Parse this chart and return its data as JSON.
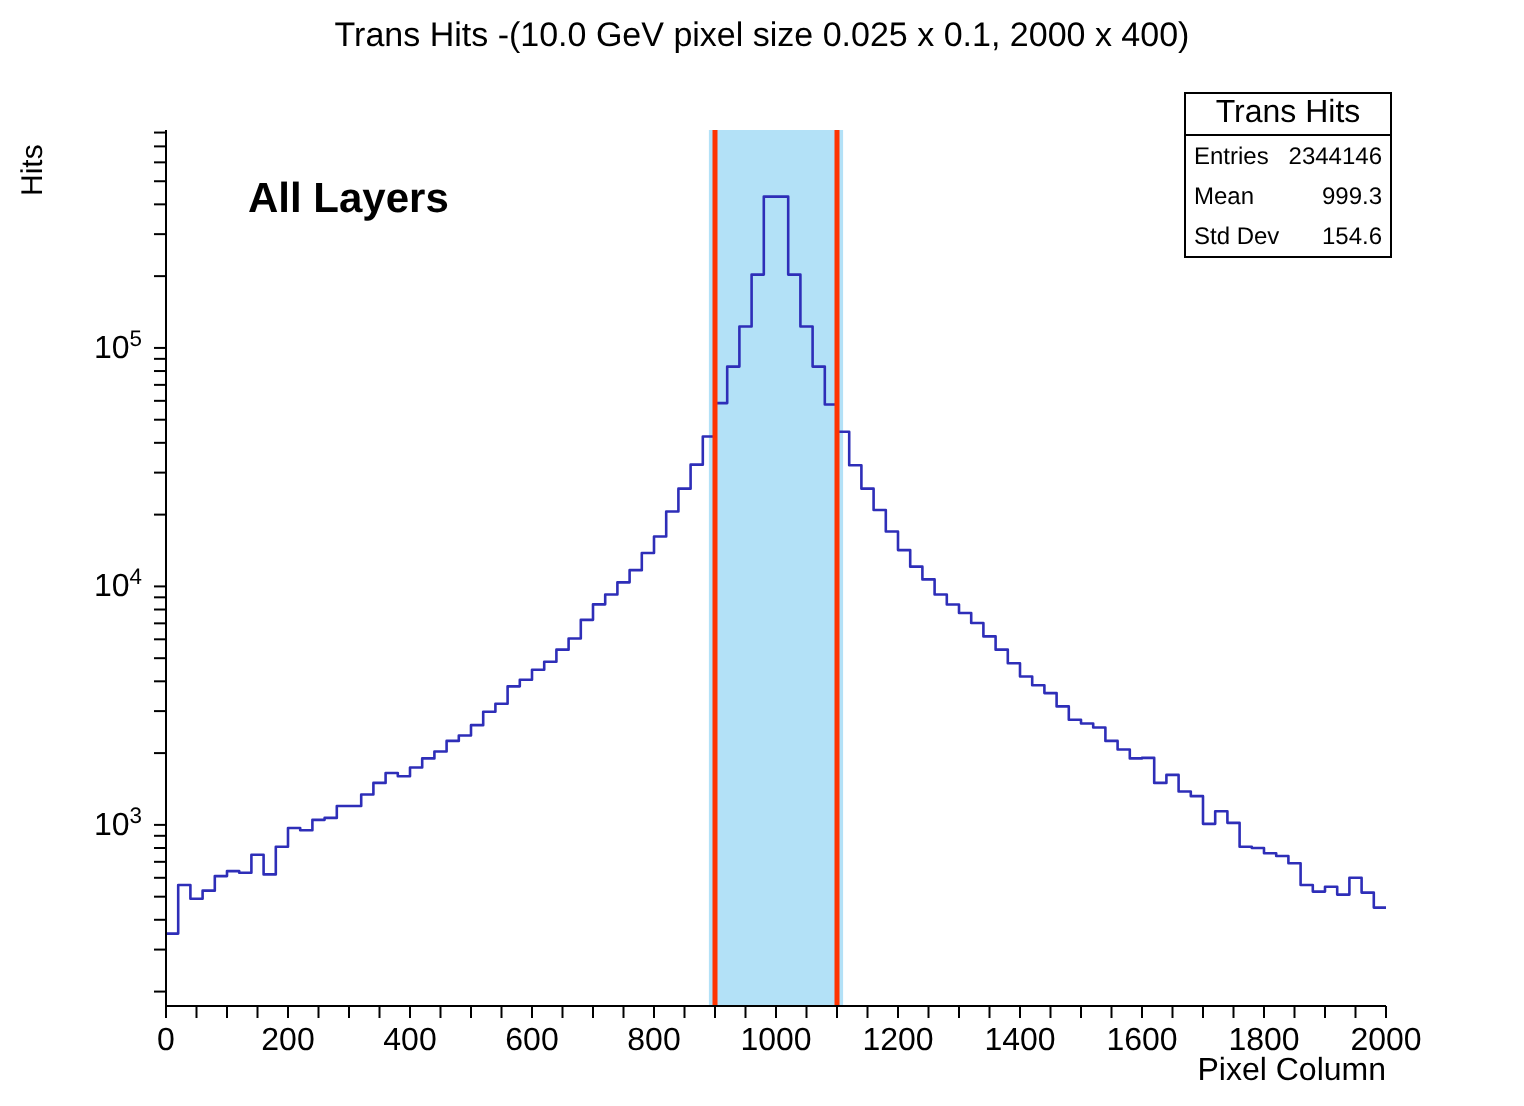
{
  "chart_data": {
    "type": "histogram",
    "title": "Trans Hits -(10.0 GeV pixel size 0.025 x 0.1, 2000 x 400)",
    "xlabel": "Pixel Column",
    "ylabel": "Hits",
    "bins": [
      0,
      20,
      40,
      60,
      80,
      100,
      120,
      140,
      160,
      180,
      200,
      220,
      240,
      260,
      280,
      300,
      320,
      340,
      360,
      380,
      400,
      420,
      440,
      460,
      480,
      500,
      520,
      540,
      560,
      580,
      600,
      620,
      640,
      660,
      680,
      700,
      720,
      740,
      760,
      780,
      800,
      820,
      840,
      860,
      880,
      900,
      920,
      940,
      960,
      980,
      1000,
      1020,
      1040,
      1060,
      1080,
      1100,
      1120,
      1140,
      1160,
      1180,
      1200,
      1220,
      1240,
      1260,
      1280,
      1300,
      1320,
      1340,
      1360,
      1380,
      1400,
      1420,
      1440,
      1460,
      1480,
      1500,
      1520,
      1540,
      1560,
      1580,
      1600,
      1620,
      1640,
      1660,
      1680,
      1700,
      1720,
      1740,
      1760,
      1780,
      1800,
      1820,
      1840,
      1860,
      1880,
      1900,
      1920,
      1940,
      1960,
      1980,
      2000
    ],
    "values": [
      350,
      560,
      490,
      530,
      610,
      640,
      630,
      750,
      620,
      810,
      970,
      950,
      1050,
      1070,
      1200,
      1200,
      1340,
      1500,
      1650,
      1600,
      1740,
      1900,
      2030,
      2250,
      2370,
      2620,
      2980,
      3220,
      3810,
      4060,
      4470,
      4830,
      5430,
      6050,
      7240,
      8410,
      9250,
      10400,
      11700,
      13800,
      16200,
      20600,
      25700,
      32400,
      42500,
      58700,
      83500,
      123000,
      203000,
      431000,
      431000,
      203000,
      123000,
      83500,
      57900,
      44500,
      32200,
      25700,
      20900,
      17000,
      14200,
      12100,
      10700,
      9250,
      8400,
      7730,
      7020,
      6170,
      5430,
      4760,
      4190,
      3850,
      3570,
      3140,
      2760,
      2660,
      2560,
      2250,
      2070,
      1900,
      1910,
      1500,
      1620,
      1380,
      1320,
      1010,
      1140,
      1020,
      810,
      800,
      760,
      740,
      690,
      560,
      525,
      550,
      510,
      600,
      520,
      450
    ],
    "color": "#2e2eb8",
    "log": "y",
    "xlim": [
      0,
      2000
    ],
    "xticks": [
      0,
      {
        "value": 50,
        "label": null
      },
      {
        "value": 100,
        "label": null
      },
      {
        "value": 150,
        "label": null
      },
      200,
      {
        "value": 250,
        "label": null
      },
      {
        "value": 300,
        "label": null
      },
      {
        "value": 350,
        "label": null
      },
      400,
      {
        "value": 450,
        "label": null
      },
      {
        "value": 500,
        "label": null
      },
      {
        "value": 550,
        "label": null
      },
      600,
      {
        "value": 650,
        "label": null
      },
      {
        "value": 700,
        "label": null
      },
      {
        "value": 750,
        "label": null
      },
      800,
      {
        "value": 850,
        "label": null
      },
      {
        "value": 900,
        "label": null
      },
      {
        "value": 950,
        "label": null
      },
      1000,
      {
        "value": 1050,
        "label": null
      },
      {
        "value": 1100,
        "label": null
      },
      {
        "value": 1150,
        "label": null
      },
      1200,
      {
        "value": 1250,
        "label": null
      },
      {
        "value": 1300,
        "label": null
      },
      {
        "value": 1350,
        "label": null
      },
      1400,
      {
        "value": 1450,
        "label": null
      },
      {
        "value": 1500,
        "label": null
      },
      {
        "value": 1550,
        "label": null
      },
      1600,
      {
        "value": 1650,
        "label": null
      },
      {
        "value": 1700,
        "label": null
      },
      {
        "value": 1750,
        "label": null
      },
      1800,
      {
        "value": 1850,
        "label": null
      },
      {
        "value": 1900,
        "label": null
      },
      {
        "value": 1950,
        "label": null
      },
      2000
    ],
    "ylim": [
      174,
      820000
    ],
    "yticks": [
      {
        "value": 200,
        "label": null
      },
      {
        "value": 300,
        "label": null
      },
      {
        "value": 400,
        "label": null
      },
      {
        "value": 500,
        "label": null
      },
      {
        "value": 600,
        "label": null
      },
      {
        "value": 700,
        "label": null
      },
      {
        "value": 800,
        "label": null
      },
      {
        "value": 900,
        "label": null
      },
      {
        "value": 1000,
        "label": "10$^{3}$"
      },
      {
        "value": 2000,
        "label": null
      },
      {
        "value": 3000,
        "label": null
      },
      {
        "value": 4000,
        "label": null
      },
      {
        "value": 5000,
        "label": null
      },
      {
        "value": 6000,
        "label": null
      },
      {
        "value": 7000,
        "label": null
      },
      {
        "value": 8000,
        "label": null
      },
      {
        "value": 9000,
        "label": null
      },
      {
        "value": 10000,
        "label": "10$^{4}$"
      },
      {
        "value": 20000,
        "label": null
      },
      {
        "value": 30000,
        "label": null
      },
      {
        "value": 40000,
        "label": null
      },
      {
        "value": 50000,
        "label": null
      },
      {
        "value": 60000,
        "label": null
      },
      {
        "value": 70000,
        "label": null
      },
      {
        "value": 80000,
        "label": null
      },
      {
        "value": 90000,
        "label": null
      },
      {
        "value": 100000,
        "label": "10$^{5}$"
      },
      {
        "value": 200000,
        "label": null
      },
      {
        "value": 300000,
        "label": null
      },
      {
        "value": 400000,
        "label": null
      },
      {
        "value": 500000,
        "label": null
      },
      {
        "value": 600000,
        "label": null
      },
      {
        "value": 700000,
        "label": null
      },
      {
        "value": 800000,
        "label": null
      }
    ],
    "bands": [
      {
        "axis": "x",
        "from": 890,
        "to": 1110,
        "color": "#b3e1f7"
      }
    ],
    "ref_lines": [
      {
        "axis": "x",
        "value": 900,
        "color": "#ff3300"
      },
      {
        "axis": "x",
        "value": 1100,
        "color": "#ff3300"
      }
    ],
    "annotations": [
      "All Layers",
      "Trans Hits",
      "Entries",
      "2344146",
      "Mean",
      "999.3",
      "Std Dev",
      "154.6"
    ]
  }
}
